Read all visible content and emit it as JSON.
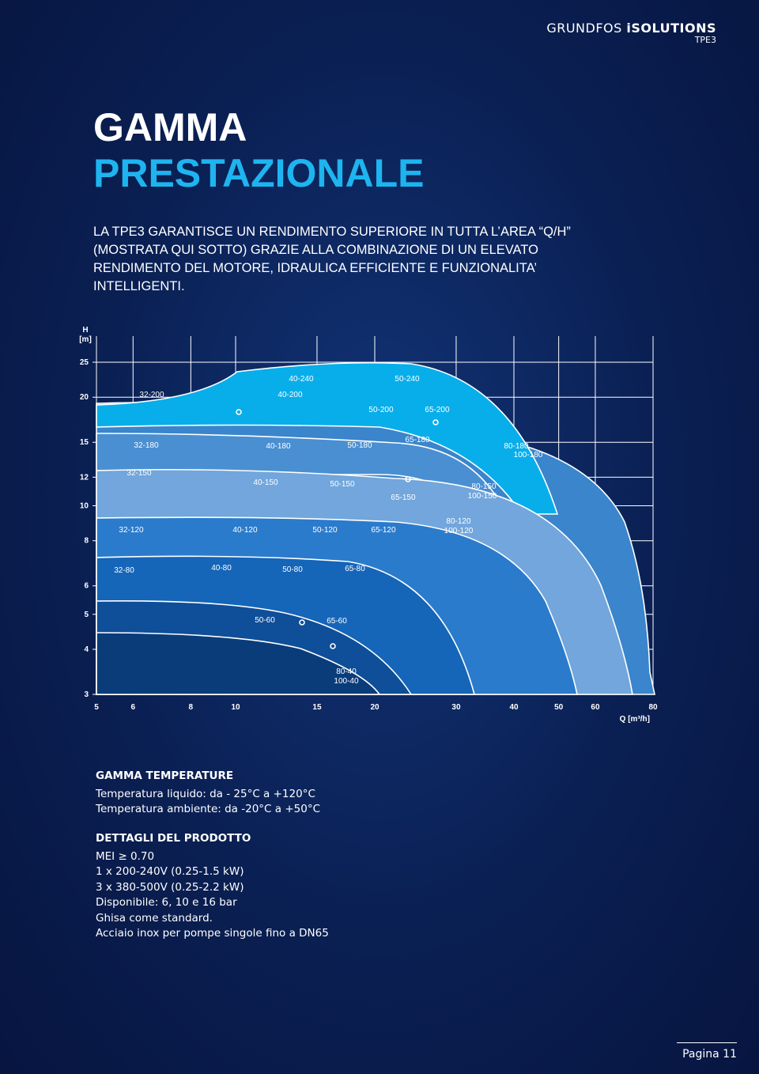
{
  "header": {
    "brand": "GRUNDFOS",
    "brand_strong": "iSOLUTIONS",
    "product": "TPE3"
  },
  "title": [
    "GAMMA",
    "PRESTAZIONALE"
  ],
  "intro": [
    "LA TPE3 GARANTISCE UN RENDIMENTO SUPERIORE IN TUTTA L’AREA “Q/H”",
    "(MOSTRATA QUI SOTTO) GRAZIE ALLA COMBINAZIONE DI UN ELEVATO",
    "RENDIMENTO DEL MOTORE, IDRAULICA EFFICIENTE E FUNZIONALITA’",
    "INTELLIGENTI."
  ],
  "chart": {
    "y_label": "H",
    "y_unit": "[m]",
    "x_label": "Q [m³/h]",
    "log_x": true,
    "log_y": true,
    "xlim": [
      5,
      80
    ],
    "ylim": [
      3,
      25
    ],
    "xticks": [
      5,
      6,
      8,
      10,
      15,
      20,
      30,
      40,
      50,
      60,
      80
    ],
    "yticks": [
      3,
      4,
      5,
      6,
      8,
      10,
      12,
      15,
      20,
      25
    ],
    "regions": [
      "40-240",
      "50-240",
      "32-200",
      "40-200",
      "50-200",
      "65-200",
      "32-180",
      "40-180",
      "50-180",
      "65-180",
      "80-180",
      "100-180",
      "32-150",
      "40-150",
      "50-150",
      "65-150",
      "80-150",
      "100-150",
      "32-120",
      "40-120",
      "50-120",
      "65-120",
      "80-120",
      "100-120",
      "32-80",
      "40-80",
      "50-80",
      "65-80",
      "50-60",
      "65-60",
      "80-40",
      "100-40"
    ]
  },
  "sections": [
    {
      "heading": "GAMMA TEMPERATURE",
      "lines": [
        "Temperatura liquido: da - 25°C a +120°C",
        "Temperatura ambiente: da -20°C a +50°C"
      ]
    },
    {
      "heading": "DETTAGLI DEL PRODOTTO",
      "lines": [
        "MEI ≥ 0.70",
        "1 x 200-240V (0.25-1.5 kW)",
        "3 x 380-500V (0.25-2.2 kW)",
        "Disponibile: 6, 10 e 16 bar",
        "Ghisa come standard.",
        "Acciaio inox per pompe singole fino a DN65"
      ]
    }
  ],
  "footer": {
    "page": "Pagina 11"
  }
}
